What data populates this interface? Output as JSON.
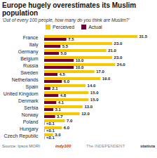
{
  "chart_data": {
    "type": "bar",
    "orientation": "horizontal",
    "title": "Europe hugely overestimates its Muslim population",
    "subtitle": "'Out of every 100 people, how many do you think are Muslim?'",
    "categories": [
      "France",
      "Italy",
      "Germany",
      "Belgium",
      "Russia",
      "Sweden",
      "Netherlands",
      "Spain",
      "United Kingdom",
      "Denmark",
      "Serbia",
      "Norway",
      "Poland",
      "Hungary",
      "Czech Republic"
    ],
    "series": [
      {
        "name": "Perceived",
        "color": "#F5C800",
        "values": [
          31.5,
          23.0,
          21.0,
          23.0,
          24.0,
          17.0,
          19.0,
          14.0,
          15.0,
          15.0,
          13.0,
          12.0,
          7.0,
          6.0,
          3.0
        ],
        "value_labels": [
          "31.5",
          "23.0",
          "21.0",
          "23.0",
          "24.0",
          "17.0",
          "19.0",
          "14.0",
          "15.0",
          "15.0",
          "13.0",
          "12.0",
          "7.0",
          "6.0",
          "3.0"
        ]
      },
      {
        "name": "Actual",
        "color": "#700035",
        "values": [
          7.5,
          5.5,
          5.0,
          10.0,
          10.0,
          4.5,
          6.0,
          2.1,
          4.8,
          4.1,
          3.1,
          3.7,
          0.1,
          0.1,
          0.1
        ],
        "value_labels": [
          "7.5",
          "5.5",
          "5.0",
          "10.0",
          "10.0",
          "4.5",
          "6.0",
          "2.1",
          "4.8",
          "4.1",
          "3.1",
          "3.7",
          "<0.1",
          "<0.1",
          "<0.1"
        ]
      }
    ],
    "xlim": [
      0,
      36
    ],
    "data_labels": true,
    "legend": "top",
    "tick_labels": "y",
    "annotations": [
      "Source: Ipsos MORI",
      "indy100",
      "The INDEPENDENT",
      "statista"
    ]
  }
}
